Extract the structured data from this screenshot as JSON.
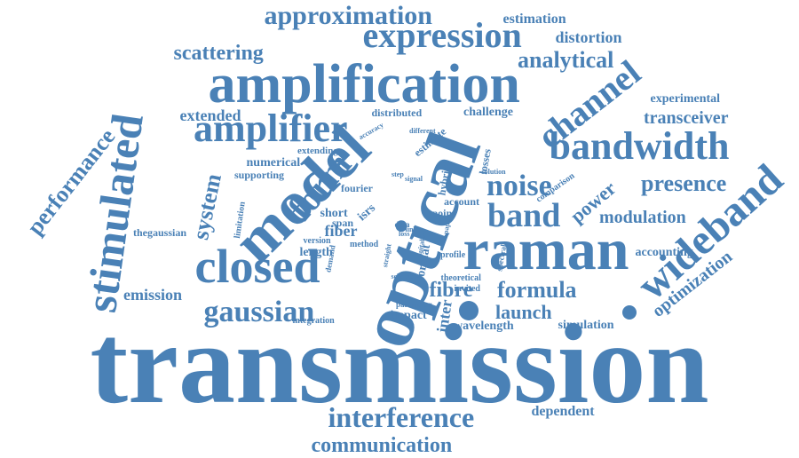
{
  "color": "#4a81b6",
  "words": [
    "transmission",
    "optical",
    "raman",
    "model",
    "amplification",
    "bandwidth",
    "stimulated",
    "closed",
    "wideband",
    "amplifier",
    "expression",
    "interference",
    "channel",
    "form",
    "gaussian",
    "noise",
    "band",
    "performance",
    "approximation",
    "scattering",
    "communication",
    "presence",
    "formula",
    "fibre",
    "launch",
    "system",
    "analytical",
    "optimization",
    "power",
    "modulation",
    "fiber",
    "transceiver",
    "extended",
    "emission",
    "estimation",
    "distortion",
    "experimental",
    "dependent",
    "simulation",
    "accounting",
    "numerical",
    "wavelength",
    "impact",
    "challenge",
    "distributed",
    "supporting",
    "extending",
    "isrs",
    "short",
    "span",
    "inter",
    "thegaussian",
    "length",
    "account",
    "fourier",
    "point",
    "integration",
    "version",
    "method",
    "format",
    "limitation",
    "hybrid",
    "estimate",
    "losses",
    "comparison",
    "theoretical",
    "invited",
    "profile",
    "data",
    "parameter",
    "signal",
    "different",
    "accuracy",
    "solution",
    "demand",
    "spectral",
    "scheme",
    "paper",
    "loss",
    "link",
    "step",
    "suitable",
    "straight"
  ]
}
